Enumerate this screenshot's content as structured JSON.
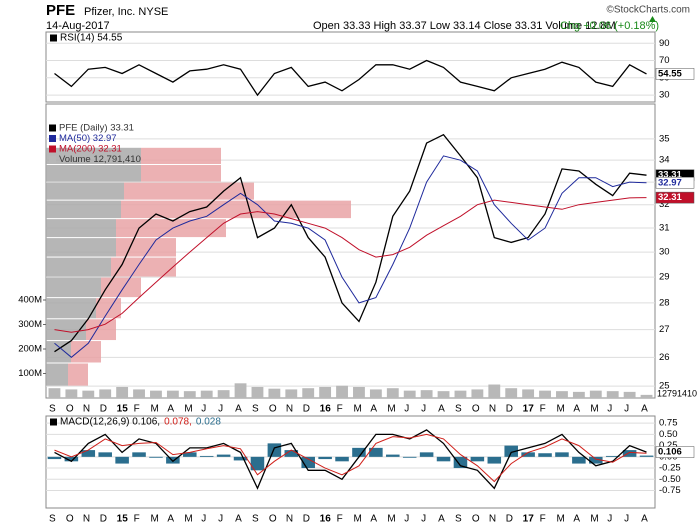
{
  "header": {
    "symbol": "PFE",
    "company": "Pfizer, Inc. NYSE",
    "date": "14-Aug-2017",
    "quote": "Open 33.33 High 33.37 Low 33.14 Close 33.31 Volume 12.8M",
    "change": "Chg +0.06 (+0.18%)",
    "credit": "©StockCharts.com"
  },
  "chart_data": [
    {
      "type": "line",
      "ylim": [
        22,
        103
      ],
      "yticks": [
        30,
        50,
        70,
        90
      ],
      "grid": true,
      "series": [
        {
          "name": "RSI(14) 54.55",
          "color": "#000000",
          "values": [
            55,
            40,
            60,
            62,
            55,
            65,
            55,
            45,
            58,
            60,
            65,
            60,
            30,
            55,
            62,
            40,
            45,
            35,
            48,
            65,
            65,
            60,
            70,
            62,
            45,
            40,
            35,
            50,
            55,
            60,
            68,
            62,
            45,
            40,
            65,
            54.55
          ]
        }
      ]
    },
    {
      "type": "line",
      "log_scale": true,
      "ylim": [
        24.6,
        36.7
      ],
      "yticks": [
        25,
        26,
        27,
        28,
        29,
        30,
        31,
        32,
        33,
        34,
        35
      ],
      "grid": true,
      "categories": [
        "S",
        "O",
        "N",
        "D",
        "15",
        "F",
        "M",
        "A",
        "M",
        "J",
        "J",
        "A",
        "S",
        "O",
        "N",
        "D",
        "16",
        "F",
        "M",
        "A",
        "M",
        "J",
        "J",
        "A",
        "S",
        "O",
        "N",
        "D",
        "17",
        "F",
        "M",
        "A",
        "M",
        "J",
        "J",
        "A"
      ],
      "series": [
        {
          "name": "PFE (Daily) 33.31",
          "color": "#000000",
          "values": [
            26.2,
            26.6,
            27.4,
            28.5,
            29.5,
            31.0,
            31.6,
            31.3,
            31.7,
            31.9,
            32.6,
            33.2,
            30.6,
            31.0,
            32.0,
            30.6,
            29.8,
            28.0,
            27.3,
            28.8,
            31.5,
            32.6,
            34.8,
            35.2,
            34.2,
            33.2,
            30.6,
            30.4,
            30.6,
            31.6,
            33.6,
            33.5,
            32.9,
            32.4,
            33.4,
            33.31
          ]
        },
        {
          "name": "MA(50) 32.97",
          "color": "#1f2a9c",
          "values": [
            26.5,
            26.0,
            26.5,
            27.5,
            28.5,
            29.5,
            30.5,
            31.0,
            31.3,
            31.5,
            32.0,
            32.5,
            32.0,
            31.3,
            31.2,
            31.0,
            30.5,
            29.0,
            28.0,
            28.2,
            29.5,
            31.0,
            33.0,
            34.2,
            34.0,
            33.5,
            32.0,
            31.2,
            30.5,
            31.0,
            32.5,
            33.2,
            33.2,
            32.8,
            33.0,
            32.97
          ]
        },
        {
          "name": "MA(200) 32.31",
          "color": "#c0102a",
          "values": [
            27.0,
            26.9,
            27.0,
            27.2,
            27.6,
            28.2,
            28.8,
            29.4,
            30.0,
            30.6,
            31.2,
            31.6,
            31.7,
            31.6,
            31.4,
            31.2,
            31.0,
            30.6,
            30.1,
            29.8,
            29.9,
            30.2,
            30.7,
            31.1,
            31.5,
            32.0,
            32.2,
            32.1,
            32.0,
            31.9,
            31.8,
            32.0,
            32.1,
            32.2,
            32.3,
            32.31
          ]
        },
        {
          "name": "Volume 12,791,410",
          "color": "#b8b8b8",
          "axis": "y2",
          "values": [
            40000000,
            35000000,
            30000000,
            35000000,
            45000000,
            35000000,
            30000000,
            30000000,
            28000000,
            30000000,
            32000000,
            60000000,
            45000000,
            38000000,
            35000000,
            40000000,
            45000000,
            50000000,
            45000000,
            35000000,
            40000000,
            30000000,
            32000000,
            28000000,
            30000000,
            35000000,
            55000000,
            40000000,
            35000000,
            30000000,
            28000000,
            25000000,
            30000000,
            28000000,
            25000000,
            12791410
          ]
        }
      ],
      "y2lim": [
        0,
        1200000000
      ],
      "y2ticks": [
        {
          "value": 100000000,
          "label": "100M"
        },
        {
          "value": 200000000,
          "label": "200M"
        },
        {
          "value": 300000000,
          "label": "300M"
        },
        {
          "value": 400000000,
          "label": "400M"
        }
      ],
      "volume_by_price": {
        "bins": [
          25.0,
          25.8,
          26.6,
          27.4,
          28.2,
          29.0,
          29.8,
          30.6,
          31.4,
          32.2,
          33.0,
          33.8,
          34.6
        ],
        "series": [
          {
            "color": "#a9a9a9",
            "values": [
              22,
              25,
              40,
              50,
              55,
              65,
              70,
              70,
              75,
              78,
              95,
              95
            ]
          },
          {
            "color": "#e9a3a6",
            "values": [
              20,
              30,
              30,
              25,
              40,
              65,
              60,
              110,
              230,
              130,
              80,
              80
            ]
          }
        ]
      }
    },
    {
      "type": "line",
      "ylim": [
        -1.14,
        0.91
      ],
      "yticks": [
        0.75,
        {
          "value": 0.5,
          "label": "0.50"
        },
        0.25,
        {
          "value": 0,
          "label": "0.00"
        },
        -0.25,
        {
          "value": -0.5,
          "label": "-0.50"
        },
        -0.75
      ],
      "categories": [
        "S",
        "O",
        "N",
        "D",
        "15",
        "F",
        "M",
        "A",
        "M",
        "J",
        "J",
        "A",
        "S",
        "O",
        "N",
        "D",
        "16",
        "F",
        "M",
        "A",
        "M",
        "J",
        "J",
        "A",
        "S",
        "O",
        "N",
        "D",
        "17",
        "F",
        "M",
        "A",
        "M",
        "J",
        "J",
        "A"
      ],
      "series": [
        {
          "name": "MACD(12,26,9) 0.106,",
          "color": "#000000",
          "values": [
            0.1,
            -0.1,
            0.3,
            0.5,
            0.1,
            0.4,
            0.3,
            -0.1,
            0.2,
            0.2,
            0.3,
            0.1,
            -0.7,
            0.2,
            0.3,
            -0.3,
            -0.3,
            -0.5,
            0.0,
            0.5,
            0.5,
            0.4,
            0.6,
            0.3,
            -0.2,
            -0.3,
            -0.7,
            0.1,
            0.2,
            0.3,
            0.5,
            0.1,
            -0.2,
            -0.1,
            0.25,
            0.106
          ]
        },
        {
          "name": "0.078,",
          "color": "#d0201a",
          "values": [
            0.15,
            0.0,
            0.15,
            0.4,
            0.25,
            0.3,
            0.32,
            0.05,
            0.1,
            0.18,
            0.25,
            0.18,
            -0.4,
            -0.1,
            0.15,
            -0.05,
            -0.25,
            -0.4,
            -0.2,
            0.3,
            0.45,
            0.42,
            0.5,
            0.4,
            0.05,
            -0.2,
            -0.55,
            -0.15,
            0.1,
            0.22,
            0.4,
            0.25,
            -0.05,
            -0.12,
            0.1,
            0.078
          ]
        },
        {
          "name": "0.028",
          "color": "#2b6e8e",
          "kind": "histogram",
          "values": [
            -0.05,
            -0.1,
            0.15,
            0.1,
            -0.15,
            0.1,
            -0.02,
            -0.15,
            0.1,
            0.02,
            0.05,
            -0.08,
            -0.3,
            0.3,
            0.15,
            -0.25,
            -0.05,
            -0.1,
            0.2,
            0.2,
            0.05,
            -0.02,
            0.1,
            -0.1,
            -0.25,
            -0.1,
            -0.15,
            0.25,
            0.1,
            0.08,
            0.1,
            -0.15,
            -0.15,
            0.02,
            0.15,
            0.028
          ]
        }
      ]
    }
  ]
}
